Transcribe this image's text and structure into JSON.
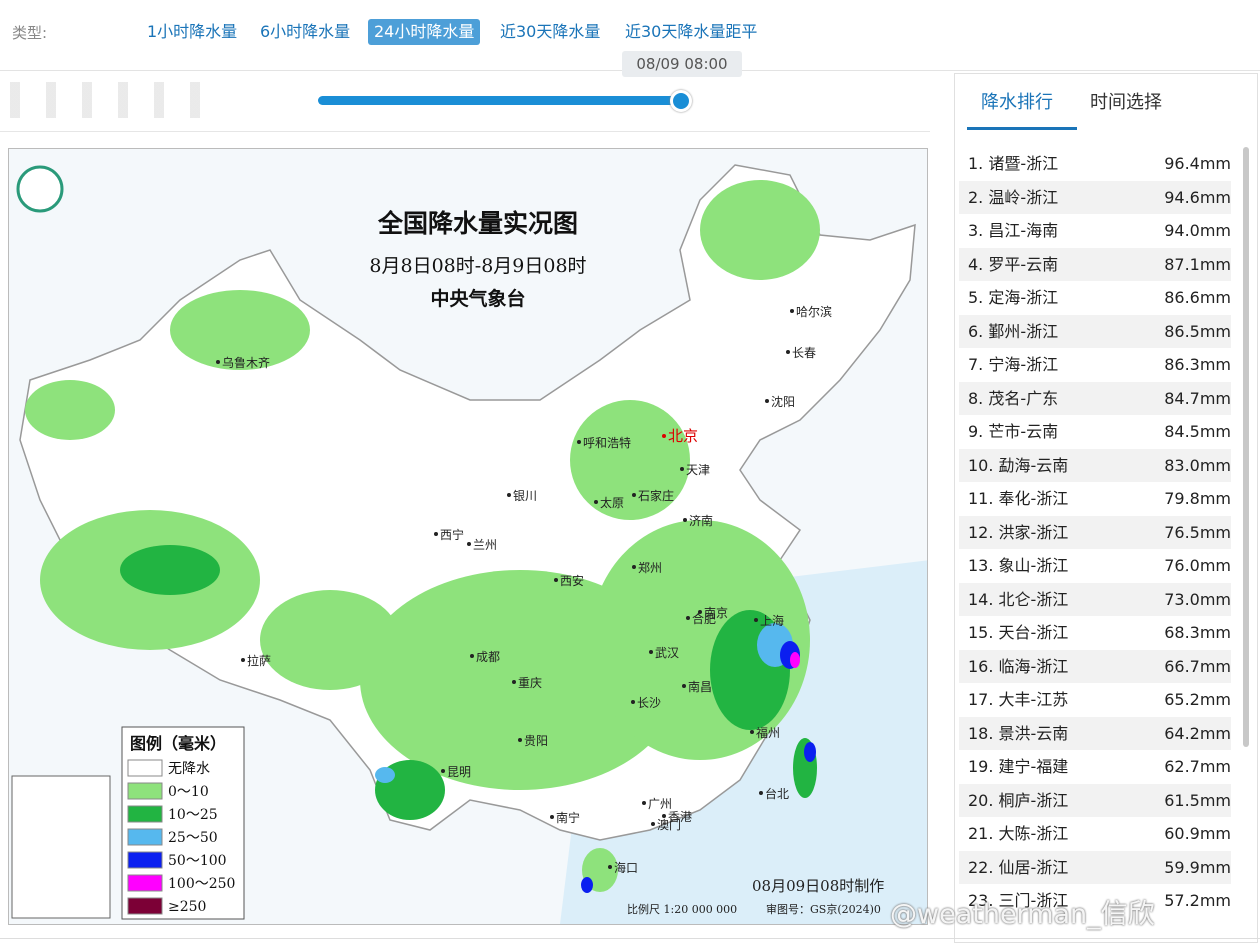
{
  "toolbar": {
    "label": "类型:",
    "tabs": [
      "1小时降水量",
      "6小时降水量",
      "24小时降水量",
      "近30天降水量",
      "近30天降水量距平"
    ],
    "active_tab": 2
  },
  "slider": {
    "time": "08/09 08:00"
  },
  "map": {
    "title": "全国降水量实况图",
    "period": "8月8日08时-8月9日08时",
    "issuer": "中央气象台",
    "legend_title": "图例（毫米）",
    "legend": [
      {
        "label": "无降水",
        "color": "#ffffff"
      },
      {
        "label": "0～10",
        "color": "#8ee27c"
      },
      {
        "label": "10～25",
        "color": "#22b442"
      },
      {
        "label": "25～50",
        "color": "#56b8ee"
      },
      {
        "label": "50～100",
        "color": "#0b1ff0"
      },
      {
        "label": "100～250",
        "color": "#ff00ff"
      },
      {
        "label": "≥250",
        "color": "#7c0036"
      }
    ],
    "made_at": "08月09日08时制作",
    "scale": "比例尺 1:20 000 000",
    "approval": "审图号：GS京(2024)0",
    "cities": [
      "乌鲁木齐",
      "哈尔滨",
      "长春",
      "沈阳",
      "呼和浩特",
      "北京",
      "天津",
      "银川",
      "太原",
      "石家庄",
      "济南",
      "西宁",
      "兰州",
      "西安",
      "郑州",
      "南京",
      "合肥",
      "上海",
      "武汉",
      "成都",
      "重庆",
      "拉萨",
      "长沙",
      "南昌",
      "贵阳",
      "昆明",
      "福州",
      "台北",
      "南宁",
      "广州",
      "香港",
      "澳门",
      "海口"
    ]
  },
  "side_panel": {
    "tabs": [
      "降水排行",
      "时间选择"
    ],
    "ranking": [
      {
        "station": "1. 诸暨-浙江",
        "amount": "96.4mm"
      },
      {
        "station": "2. 温岭-浙江",
        "amount": "94.6mm"
      },
      {
        "station": "3. 昌江-海南",
        "amount": "94.0mm"
      },
      {
        "station": "4. 罗平-云南",
        "amount": "87.1mm"
      },
      {
        "station": "5. 定海-浙江",
        "amount": "86.6mm"
      },
      {
        "station": "6. 鄞州-浙江",
        "amount": "86.5mm"
      },
      {
        "station": "7. 宁海-浙江",
        "amount": "86.3mm"
      },
      {
        "station": "8. 茂名-广东",
        "amount": "84.7mm"
      },
      {
        "station": "9. 芒市-云南",
        "amount": "84.5mm"
      },
      {
        "station": "10. 勐海-云南",
        "amount": "83.0mm"
      },
      {
        "station": "11. 奉化-浙江",
        "amount": "79.8mm"
      },
      {
        "station": "12. 洪家-浙江",
        "amount": "76.5mm"
      },
      {
        "station": "13. 象山-浙江",
        "amount": "76.0mm"
      },
      {
        "station": "14. 北仑-浙江",
        "amount": "73.0mm"
      },
      {
        "station": "15. 天台-浙江",
        "amount": "68.3mm"
      },
      {
        "station": "16. 临海-浙江",
        "amount": "66.7mm"
      },
      {
        "station": "17. 大丰-江苏",
        "amount": "65.2mm"
      },
      {
        "station": "18. 景洪-云南",
        "amount": "64.2mm"
      },
      {
        "station": "19. 建宁-福建",
        "amount": "62.7mm"
      },
      {
        "station": "20. 桐庐-浙江",
        "amount": "61.5mm"
      },
      {
        "station": "21. 大陈-浙江",
        "amount": "60.9mm"
      },
      {
        "station": "22. 仙居-浙江",
        "amount": "59.9mm"
      },
      {
        "station": "23. 三门-浙江",
        "amount": "57.2mm"
      }
    ]
  },
  "watermark": "@weatherman_信欣"
}
